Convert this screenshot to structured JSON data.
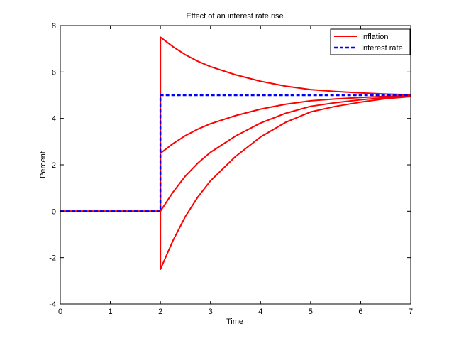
{
  "chart_data": {
    "type": "line",
    "title": "Effect of an interest rate rise",
    "xlabel": "Time",
    "ylabel": "Percent",
    "xlim": [
      0,
      7
    ],
    "ylim": [
      -4,
      8
    ],
    "xticks": [
      0,
      1,
      2,
      3,
      4,
      5,
      6,
      7
    ],
    "yticks": [
      -4,
      -2,
      0,
      2,
      4,
      6,
      8
    ],
    "xtick_labels": [
      "0",
      "1",
      "2",
      "3",
      "4",
      "5",
      "6",
      "7"
    ],
    "ytick_labels": [
      "-4",
      "-2",
      "0",
      "2",
      "4",
      "6",
      "8"
    ],
    "grid": false,
    "legend_position": "top-right",
    "legend": [
      "Inflation",
      "Interest rate"
    ],
    "colors": {
      "inflation": "#ff0000",
      "interest_rate": "#0000ff"
    },
    "series": [
      {
        "name": "Interest rate",
        "style": "dashed",
        "color": "#0000ff",
        "x": [
          0,
          2,
          2,
          7
        ],
        "y": [
          0,
          0,
          5,
          5
        ]
      },
      {
        "name": "Inflation",
        "style": "solid",
        "color": "#ff0000",
        "x": [
          0,
          2,
          2,
          2.25,
          2.5,
          2.75,
          3,
          3.5,
          4,
          4.5,
          5,
          5.5,
          6,
          6.5,
          7
        ],
        "y": [
          0,
          0,
          7.5,
          7.09,
          6.74,
          6.46,
          6.23,
          5.88,
          5.6,
          5.39,
          5.24,
          5.16,
          5.1,
          5.05,
          5.02
        ]
      },
      {
        "name": "Inflation",
        "style": "solid",
        "color": "#ff0000",
        "x": [
          0,
          2,
          2,
          2.25,
          2.5,
          2.75,
          3,
          3.5,
          4,
          4.5,
          5,
          5.5,
          6,
          6.5,
          7
        ],
        "y": [
          0,
          0,
          2.5,
          2.91,
          3.26,
          3.54,
          3.77,
          4.12,
          4.4,
          4.61,
          4.76,
          4.84,
          4.9,
          4.95,
          4.98
        ]
      },
      {
        "name": "Inflation",
        "style": "solid",
        "color": "#ff0000",
        "x": [
          0,
          2,
          2,
          2.25,
          2.5,
          2.75,
          3,
          3.5,
          4,
          4.5,
          5,
          5.5,
          6,
          6.5,
          7
        ],
        "y": [
          0,
          0,
          0,
          0.82,
          1.52,
          2.08,
          2.54,
          3.24,
          3.8,
          4.22,
          4.52,
          4.68,
          4.8,
          4.9,
          4.96
        ]
      },
      {
        "name": "Inflation",
        "style": "solid",
        "color": "#ff0000",
        "x": [
          0,
          2,
          2,
          2.25,
          2.5,
          2.75,
          3,
          3.5,
          4,
          4.5,
          5,
          5.5,
          6,
          6.5,
          7
        ],
        "y": [
          0,
          0,
          -2.5,
          -1.27,
          -0.22,
          0.62,
          1.31,
          2.36,
          3.2,
          3.83,
          4.28,
          4.52,
          4.7,
          4.85,
          4.94
        ]
      }
    ]
  }
}
